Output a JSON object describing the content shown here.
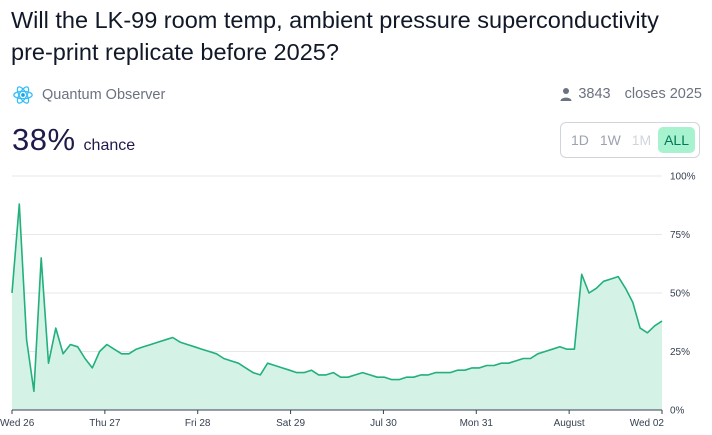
{
  "market": {
    "title": "Will the LK-99 room temp, ambient pressure superconductivity pre-print replicate before 2025?",
    "creator": "Quantum Observer",
    "traders": "3843",
    "closes": "closes 2025",
    "probability": "38%",
    "probability_label": "chance"
  },
  "range_tabs": [
    {
      "label": "1D",
      "state": "normal"
    },
    {
      "label": "1W",
      "state": "normal"
    },
    {
      "label": "1M",
      "state": "disabled"
    },
    {
      "label": "ALL",
      "state": "active"
    }
  ],
  "colors": {
    "line": "#22b07d",
    "fill": "#d4f3e6",
    "grid": "#e5e7eb",
    "active_tab_bg": "#a7f3d0",
    "active_tab_text": "#047857"
  },
  "icons": {
    "creator": "atom-icon",
    "traders": "user-icon"
  },
  "chart_data": {
    "type": "area",
    "x_labels": [
      "Wed 26",
      "Thu 27",
      "Fri 28",
      "Sat 29",
      "Jul 30",
      "Mon 31",
      "August",
      "Wed 02"
    ],
    "y_ticks": [
      "0%",
      "25%",
      "50%",
      "75%",
      "100%"
    ],
    "ylim": [
      0,
      100
    ],
    "grid": true,
    "series": [
      {
        "values": [
          50,
          88,
          30,
          8,
          65,
          20,
          35,
          24,
          28,
          27,
          22,
          18,
          25,
          28,
          26,
          24,
          24,
          26,
          27,
          28,
          29,
          30,
          31,
          29,
          28,
          27,
          26,
          25,
          24,
          22,
          21,
          20,
          18,
          16,
          15,
          20,
          19,
          18,
          17,
          16,
          16,
          17,
          15,
          15,
          16,
          14,
          14,
          15,
          16,
          15,
          14,
          14,
          13,
          13,
          14,
          14,
          15,
          15,
          16,
          16,
          16,
          17,
          17,
          18,
          18,
          19,
          19,
          20,
          20,
          21,
          22,
          22,
          24,
          25,
          26,
          27,
          26,
          26,
          58,
          50,
          52,
          55,
          56,
          57,
          52,
          46,
          35,
          33,
          36,
          38
        ]
      }
    ]
  }
}
